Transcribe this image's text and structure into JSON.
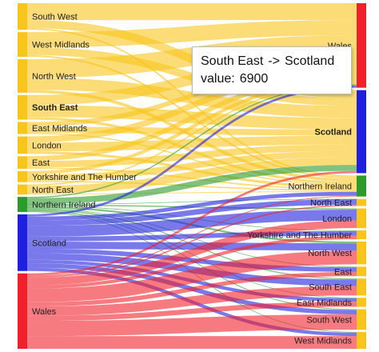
{
  "chart_data": {
    "type": "sankey",
    "units": "people",
    "colors": {
      "england": "#f9c41b",
      "scotland": "#1f1fe0",
      "wales": "#f0212b",
      "northern_ireland": "#2b9b2b"
    },
    "source_nodes": [
      {
        "name": "South West",
        "group": "england",
        "bold": false
      },
      {
        "name": "West Midlands",
        "group": "england",
        "bold": false
      },
      {
        "name": "North West",
        "group": "england",
        "bold": false
      },
      {
        "name": "South East",
        "group": "england",
        "bold": true
      },
      {
        "name": "East Midlands",
        "group": "england",
        "bold": false
      },
      {
        "name": "London",
        "group": "england",
        "bold": false
      },
      {
        "name": "East",
        "group": "england",
        "bold": false
      },
      {
        "name": "Yorkshire and The Humber",
        "group": "england",
        "bold": false
      },
      {
        "name": "North East",
        "group": "england",
        "bold": false
      },
      {
        "name": "Northern Ireland",
        "group": "northern_ireland",
        "bold": false
      },
      {
        "name": "Scotland",
        "group": "scotland",
        "bold": false
      },
      {
        "name": "Wales",
        "group": "wales",
        "bold": false
      }
    ],
    "target_nodes": [
      {
        "name": "Wales",
        "group": "wales",
        "bold": false
      },
      {
        "name": "Scotland",
        "group": "scotland",
        "bold": true
      },
      {
        "name": "Northern Ireland",
        "group": "northern_ireland",
        "bold": false
      },
      {
        "name": "North East",
        "group": "england",
        "bold": false
      },
      {
        "name": "London",
        "group": "england",
        "bold": false
      },
      {
        "name": "Yorkshire and The Humber",
        "group": "england",
        "bold": false
      },
      {
        "name": "North West",
        "group": "england",
        "bold": false
      },
      {
        "name": "East",
        "group": "england",
        "bold": false
      },
      {
        "name": "South East",
        "group": "england",
        "bold": false
      },
      {
        "name": "East Midlands",
        "group": "england",
        "bold": false
      },
      {
        "name": "South West",
        "group": "england",
        "bold": false
      },
      {
        "name": "West Midlands",
        "group": "england",
        "bold": false
      }
    ],
    "links": [
      {
        "source": "South West",
        "target": "Wales",
        "value": 10000
      },
      {
        "source": "South West",
        "target": "Scotland",
        "value": 4800
      },
      {
        "source": "South West",
        "target": "Northern Ireland",
        "value": 900
      },
      {
        "source": "West Midlands",
        "target": "Wales",
        "value": 9000
      },
      {
        "source": "West Midlands",
        "target": "Scotland",
        "value": 4600
      },
      {
        "source": "West Midlands",
        "target": "Northern Ireland",
        "value": 1000
      },
      {
        "source": "North West",
        "target": "Wales",
        "value": 11000
      },
      {
        "source": "North West",
        "target": "Scotland",
        "value": 7000
      },
      {
        "source": "North West",
        "target": "Northern Ireland",
        "value": 1800
      },
      {
        "source": "South East",
        "target": "Wales",
        "value": 6000
      },
      {
        "source": "South East",
        "target": "Scotland",
        "value": 6900
      },
      {
        "source": "South East",
        "target": "Northern Ireland",
        "value": 1600
      },
      {
        "source": "East Midlands",
        "target": "Wales",
        "value": 2800
      },
      {
        "source": "East Midlands",
        "target": "Scotland",
        "value": 3600
      },
      {
        "source": "East Midlands",
        "target": "Northern Ireland",
        "value": 700
      },
      {
        "source": "London",
        "target": "Wales",
        "value": 3600
      },
      {
        "source": "London",
        "target": "Scotland",
        "value": 5200
      },
      {
        "source": "London",
        "target": "Northern Ireland",
        "value": 1500
      },
      {
        "source": "East",
        "target": "Wales",
        "value": 2800
      },
      {
        "source": "East",
        "target": "Scotland",
        "value": 3800
      },
      {
        "source": "East",
        "target": "Northern Ireland",
        "value": 800
      },
      {
        "source": "Yorkshire and The Humber",
        "target": "Wales",
        "value": 2000
      },
      {
        "source": "Yorkshire and The Humber",
        "target": "Scotland",
        "value": 3700
      },
      {
        "source": "Yorkshire and The Humber",
        "target": "Northern Ireland",
        "value": 800
      },
      {
        "source": "North East",
        "target": "Wales",
        "value": 800
      },
      {
        "source": "North East",
        "target": "Scotland",
        "value": 4600
      },
      {
        "source": "North East",
        "target": "Northern Ireland",
        "value": 500
      },
      {
        "source": "Northern Ireland",
        "target": "Wales",
        "value": 700
      },
      {
        "source": "Northern Ireland",
        "target": "Scotland",
        "value": 3600
      },
      {
        "source": "Northern Ireland",
        "target": "North East",
        "value": 200
      },
      {
        "source": "Northern Ireland",
        "target": "London",
        "value": 700
      },
      {
        "source": "Northern Ireland",
        "target": "Yorkshire and The Humber",
        "value": 400
      },
      {
        "source": "Northern Ireland",
        "target": "North West",
        "value": 1100
      },
      {
        "source": "Northern Ireland",
        "target": "East",
        "value": 400
      },
      {
        "source": "Northern Ireland",
        "target": "South East",
        "value": 600
      },
      {
        "source": "Northern Ireland",
        "target": "East Midlands",
        "value": 300
      },
      {
        "source": "Northern Ireland",
        "target": "South West",
        "value": 500
      },
      {
        "source": "Northern Ireland",
        "target": "West Midlands",
        "value": 400
      },
      {
        "source": "Scotland",
        "target": "Wales",
        "value": 1300
      },
      {
        "source": "Scotland",
        "target": "Northern Ireland",
        "value": 2300
      },
      {
        "source": "Scotland",
        "target": "North East",
        "value": 3200
      },
      {
        "source": "Scotland",
        "target": "London",
        "value": 6400
      },
      {
        "source": "Scotland",
        "target": "Yorkshire and The Humber",
        "value": 2800
      },
      {
        "source": "Scotland",
        "target": "North West",
        "value": 4300
      },
      {
        "source": "Scotland",
        "target": "East",
        "value": 2700
      },
      {
        "source": "Scotland",
        "target": "South East",
        "value": 3900
      },
      {
        "source": "Scotland",
        "target": "East Midlands",
        "value": 2000
      },
      {
        "source": "Scotland",
        "target": "South West",
        "value": 2600
      },
      {
        "source": "Scotland",
        "target": "West Midlands",
        "value": 2000
      },
      {
        "source": "Wales",
        "target": "Scotland",
        "value": 1300
      },
      {
        "source": "Wales",
        "target": "Northern Ireland",
        "value": 500
      },
      {
        "source": "Wales",
        "target": "North East",
        "value": 800
      },
      {
        "source": "Wales",
        "target": "London",
        "value": 4500
      },
      {
        "source": "Wales",
        "target": "Yorkshire and The Humber",
        "value": 2000
      },
      {
        "source": "Wales",
        "target": "North West",
        "value": 8000
      },
      {
        "source": "Wales",
        "target": "East",
        "value": 2500
      },
      {
        "source": "Wales",
        "target": "South East",
        "value": 5500
      },
      {
        "source": "Wales",
        "target": "East Midlands",
        "value": 3000
      },
      {
        "source": "Wales",
        "target": "South West",
        "value": 9000
      },
      {
        "source": "Wales",
        "target": "West Midlands",
        "value": 7500
      }
    ]
  },
  "tooltip": {
    "source": "South East",
    "arrow": "->",
    "target": "Scotland",
    "value_label": "value:",
    "value": "6900"
  }
}
